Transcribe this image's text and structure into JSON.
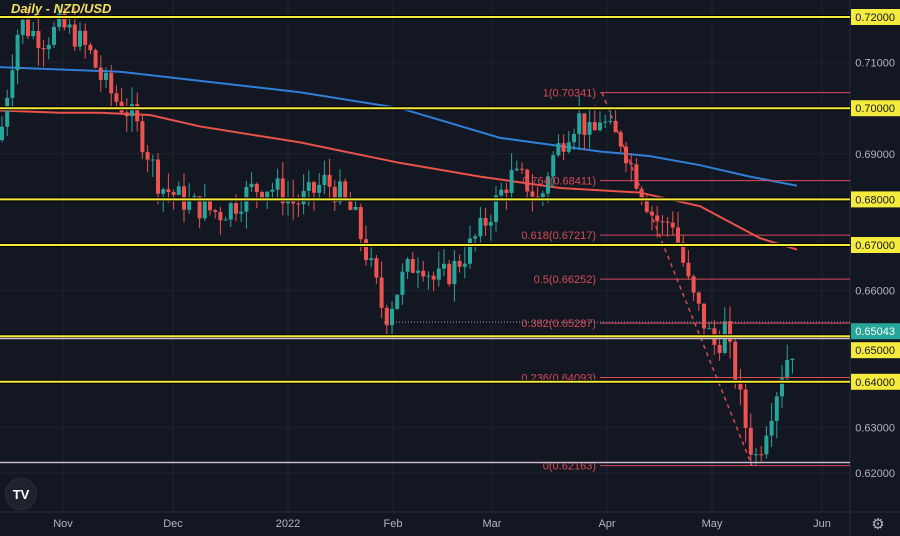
{
  "header": {
    "title": "Daily - NZD/USD"
  },
  "colors": {
    "background": "#131722",
    "grid": "#1f2330",
    "up": "#26a69a",
    "down": "#ef5350",
    "ma_blue": "#2f7fd8",
    "ma_red": "#e8524a",
    "yellow_line": "#f5eb3c",
    "fib": "#d84a57",
    "white_line": "#c7b9c9",
    "axis_text": "#b2b5be",
    "price_badge": "#26a69a"
  },
  "price_axis": {
    "labels": [
      "0.72000",
      "0.71000",
      "0.70000",
      "0.69000",
      "0.68000",
      "0.67000",
      "0.66000",
      "0.65000",
      "0.64000",
      "0.63000",
      "0.62000"
    ],
    "highlighted": [
      "0.72000",
      "0.70000",
      "0.68000",
      "0.67000",
      "0.65000",
      "0.64000"
    ],
    "current_price": "0.65043"
  },
  "time_axis": {
    "labels": [
      "Nov",
      "Dec",
      "2022",
      "Feb",
      "Mar",
      "Apr",
      "May",
      "Jun"
    ]
  },
  "logo": {
    "text": "TV"
  },
  "settings_icon": "⚙",
  "chart_data": {
    "type": "candlestick",
    "title": "Daily - NZD/USD",
    "xlabel": "",
    "ylabel": "",
    "ylim": [
      0.615,
      0.7215
    ],
    "x_ticks": [
      "Nov",
      "Dec",
      "2022",
      "Feb",
      "Mar",
      "Apr",
      "May",
      "Jun"
    ],
    "y_ticks": [
      0.72,
      0.71,
      0.7,
      0.69,
      0.68,
      0.67,
      0.66,
      0.65,
      0.64,
      0.63,
      0.62
    ],
    "current_price": 0.65043,
    "horizontal_levels": [
      {
        "price": 0.72,
        "color": "yellow"
      },
      {
        "price": 0.7,
        "color": "yellow"
      },
      {
        "price": 0.68,
        "color": "yellow"
      },
      {
        "price": 0.67,
        "color": "yellow"
      },
      {
        "price": 0.65,
        "color": "yellow"
      },
      {
        "price": 0.64,
        "color": "yellow"
      },
      {
        "price": 0.6495,
        "color": "white"
      },
      {
        "price": 0.6223,
        "color": "white"
      }
    ],
    "fibonacci": [
      {
        "ratio": "1",
        "price": 0.70341
      },
      {
        "ratio": "0.764",
        "price": 0.68411
      },
      {
        "ratio": "0.618",
        "price": 0.67217
      },
      {
        "ratio": "0.5",
        "price": 0.66252
      },
      {
        "ratio": "0.382",
        "price": 0.65287
      },
      {
        "ratio": "0.236",
        "price": 0.64093
      },
      {
        "ratio": "0",
        "price": 0.62163
      }
    ],
    "series": [
      {
        "name": "MA (blue, 200)",
        "points": [
          [
            0,
            0.709
          ],
          [
            60,
            0.7085
          ],
          [
            120,
            0.708
          ],
          [
            200,
            0.706
          ],
          [
            300,
            0.7035
          ],
          [
            400,
            0.7
          ],
          [
            500,
            0.6935
          ],
          [
            600,
            0.6905
          ],
          [
            650,
            0.6895
          ],
          [
            700,
            0.6875
          ],
          [
            750,
            0.685
          ],
          [
            797,
            0.683
          ]
        ]
      },
      {
        "name": "MA (red, 100)",
        "points": [
          [
            0,
            0.6995
          ],
          [
            60,
            0.699
          ],
          [
            100,
            0.699
          ],
          [
            150,
            0.6985
          ],
          [
            200,
            0.696
          ],
          [
            300,
            0.6925
          ],
          [
            400,
            0.688
          ],
          [
            480,
            0.685
          ],
          [
            560,
            0.6825
          ],
          [
            640,
            0.6815
          ],
          [
            700,
            0.6785
          ],
          [
            760,
            0.6715
          ],
          [
            797,
            0.669
          ]
        ]
      }
    ],
    "candles_note": "approx daily OHLC from Oct 2021 to late May 2022; high ~0.7219 (late Oct), low ~0.6216 (mid May), last close ~0.65043"
  }
}
